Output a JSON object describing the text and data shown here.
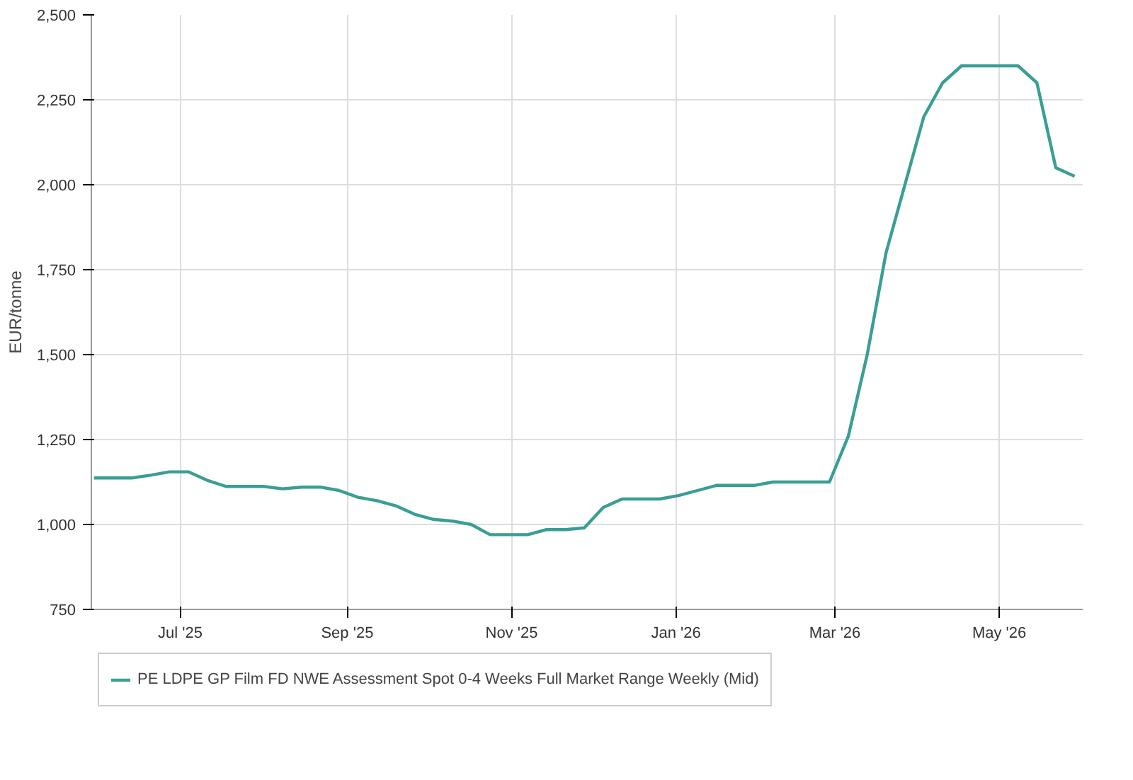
{
  "chart_data": {
    "type": "line",
    "ylabel": "EUR/tonne",
    "x": [
      "2025-05-30",
      "2025-06-06",
      "2025-06-13",
      "2025-06-20",
      "2025-06-27",
      "2025-07-04",
      "2025-07-11",
      "2025-07-18",
      "2025-07-25",
      "2025-08-01",
      "2025-08-08",
      "2025-08-15",
      "2025-08-22",
      "2025-08-29",
      "2025-09-05",
      "2025-09-12",
      "2025-09-19",
      "2025-09-26",
      "2025-10-03",
      "2025-10-10",
      "2025-10-17",
      "2025-10-24",
      "2025-10-31",
      "2025-11-07",
      "2025-11-14",
      "2025-11-21",
      "2025-11-28",
      "2025-12-05",
      "2025-12-12",
      "2025-12-19",
      "2025-12-26",
      "2026-01-02",
      "2026-01-09",
      "2026-01-16",
      "2026-01-23",
      "2026-01-30",
      "2026-02-06",
      "2026-02-13",
      "2026-02-20",
      "2026-02-27",
      "2026-03-06",
      "2026-03-13",
      "2026-03-20",
      "2026-03-27",
      "2026-04-03",
      "2026-04-10",
      "2026-04-17",
      "2026-04-24",
      "2026-05-01",
      "2026-05-08",
      "2026-05-15",
      "2026-05-22",
      "2026-05-29"
    ],
    "series": [
      {
        "name": "PE LDPE GP Film FD NWE Assessment Spot 0-4 Weeks Full Market Range Weekly (Mid)",
        "color": "#3a9e95",
        "values": [
          1137,
          1137,
          1137,
          1145,
          1155,
          1155,
          1130,
          1112,
          1112,
          1112,
          1105,
          1110,
          1110,
          1100,
          1080,
          1070,
          1055,
          1030,
          1015,
          1010,
          1000,
          970,
          970,
          970,
          985,
          985,
          990,
          1050,
          1075,
          1075,
          1075,
          1085,
          1100,
          1115,
          1115,
          1115,
          1125,
          1125,
          1125,
          1125,
          1260,
          1500,
          1800,
          2000,
          2200,
          2300,
          2350,
          2350,
          2350,
          2350,
          2300,
          2050,
          2025
        ]
      }
    ],
    "xlim": [
      "2025-05-29",
      "2026-06-01"
    ],
    "xticks": [
      {
        "value": "2025-07-01",
        "label": "Jul '25"
      },
      {
        "value": "2025-09-01",
        "label": "Sep '25"
      },
      {
        "value": "2025-11-01",
        "label": "Nov '25"
      },
      {
        "value": "2026-01-01",
        "label": "Jan '26"
      },
      {
        "value": "2026-03-01",
        "label": "Mar '26"
      },
      {
        "value": "2026-05-01",
        "label": "May '26"
      }
    ],
    "ylim": [
      750,
      2500
    ],
    "yticks": [
      {
        "value": 750,
        "label": "750"
      },
      {
        "value": 1000,
        "label": "1,000"
      },
      {
        "value": 1250,
        "label": "1,250"
      },
      {
        "value": 1500,
        "label": "1,500"
      },
      {
        "value": 1750,
        "label": "1,750"
      },
      {
        "value": 2000,
        "label": "2,000"
      },
      {
        "value": 2250,
        "label": "2,250"
      },
      {
        "value": 2500,
        "label": "2,500"
      }
    ],
    "grid": true,
    "legend": "bottom",
    "marker": "none",
    "line_style": "solid"
  }
}
